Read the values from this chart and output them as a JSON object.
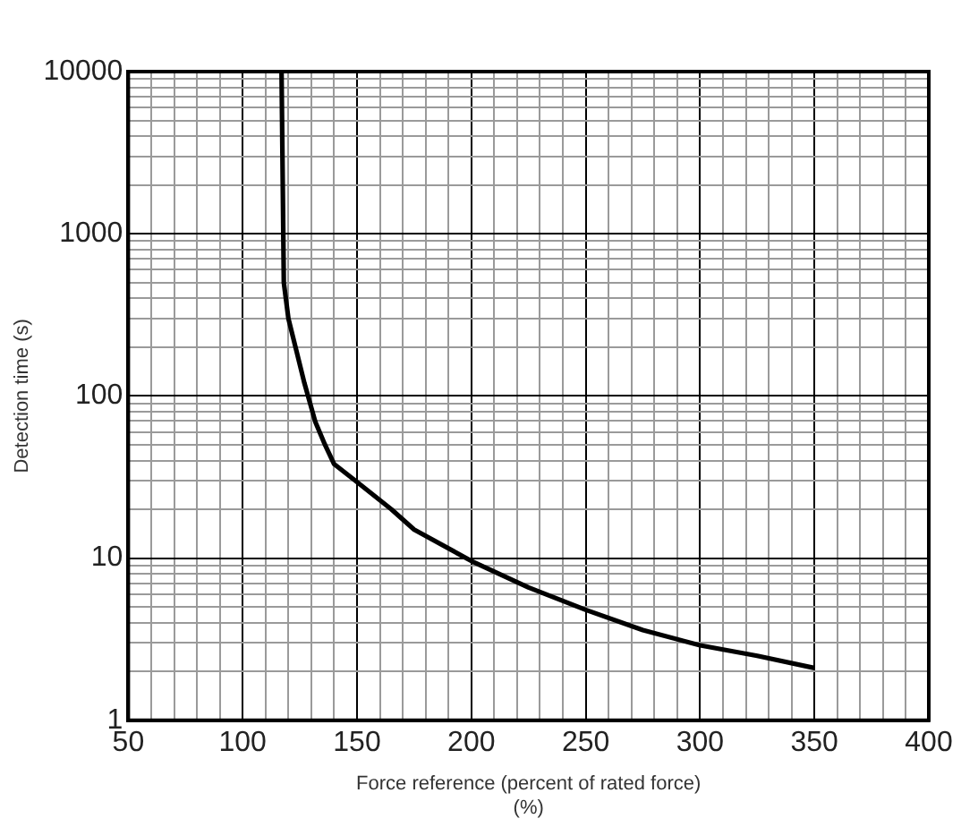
{
  "chart_data": {
    "type": "line",
    "xlabel": "Force reference (percent of rated force)\n(%)",
    "ylabel": "Detection time (s)",
    "log": "y",
    "grid": true,
    "legend": false,
    "marker": "none",
    "line_style": "solid",
    "xlim": [
      50,
      400
    ],
    "xticks": [
      50,
      {
        "value": 60,
        "label": null
      },
      {
        "value": 70,
        "label": null
      },
      {
        "value": 80,
        "label": null
      },
      {
        "value": 90,
        "label": null
      },
      100,
      {
        "value": 110,
        "label": null
      },
      {
        "value": 120,
        "label": null
      },
      {
        "value": 130,
        "label": null
      },
      {
        "value": 140,
        "label": null
      },
      150,
      {
        "value": 160,
        "label": null
      },
      {
        "value": 170,
        "label": null
      },
      {
        "value": 180,
        "label": null
      },
      {
        "value": 190,
        "label": null
      },
      200,
      {
        "value": 210,
        "label": null
      },
      {
        "value": 220,
        "label": null
      },
      {
        "value": 230,
        "label": null
      },
      {
        "value": 240,
        "label": null
      },
      250,
      {
        "value": 260,
        "label": null
      },
      {
        "value": 270,
        "label": null
      },
      {
        "value": 280,
        "label": null
      },
      {
        "value": 290,
        "label": null
      },
      300,
      {
        "value": 310,
        "label": null
      },
      {
        "value": 320,
        "label": null
      },
      {
        "value": 330,
        "label": null
      },
      {
        "value": 340,
        "label": null
      },
      350,
      {
        "value": 360,
        "label": null
      },
      {
        "value": 370,
        "label": null
      },
      {
        "value": 380,
        "label": null
      },
      {
        "value": 390,
        "label": null
      },
      400
    ],
    "ylim": [
      1,
      10000
    ],
    "yticks": [
      1,
      {
        "value": 2,
        "label": null
      },
      {
        "value": 3,
        "label": null
      },
      {
        "value": 4,
        "label": null
      },
      {
        "value": 5,
        "label": null
      },
      {
        "value": 6,
        "label": null
      },
      {
        "value": 7,
        "label": null
      },
      {
        "value": 8,
        "label": null
      },
      {
        "value": 9,
        "label": null
      },
      10,
      {
        "value": 20,
        "label": null
      },
      {
        "value": 30,
        "label": null
      },
      {
        "value": 40,
        "label": null
      },
      {
        "value": 50,
        "label": null
      },
      {
        "value": 60,
        "label": null
      },
      {
        "value": 70,
        "label": null
      },
      {
        "value": 80,
        "label": null
      },
      {
        "value": 90,
        "label": null
      },
      100,
      {
        "value": 200,
        "label": null
      },
      {
        "value": 300,
        "label": null
      },
      {
        "value": 400,
        "label": null
      },
      {
        "value": 500,
        "label": null
      },
      {
        "value": 600,
        "label": null
      },
      {
        "value": 700,
        "label": null
      },
      {
        "value": 800,
        "label": null
      },
      {
        "value": 900,
        "label": null
      },
      1000,
      {
        "value": 2000,
        "label": null
      },
      {
        "value": 3000,
        "label": null
      },
      {
        "value": 4000,
        "label": null
      },
      {
        "value": 5000,
        "label": null
      },
      {
        "value": 6000,
        "label": null
      },
      {
        "value": 7000,
        "label": null
      },
      {
        "value": 8000,
        "label": null
      },
      {
        "value": 9000,
        "label": null
      },
      10000
    ],
    "series": [
      {
        "color": "#000000",
        "x": [
          117,
          118,
          120,
          123.5,
          127,
          131.8,
          136,
          140,
          150.6,
          165,
          175,
          200,
          225,
          250,
          275,
          300,
          325,
          350
        ],
        "values": [
          10000,
          500,
          300,
          190,
          120,
          69,
          50,
          38,
          29,
          20,
          15,
          9.6,
          6.6,
          4.8,
          3.6,
          2.9,
          2.5,
          2.1
        ]
      }
    ]
  }
}
